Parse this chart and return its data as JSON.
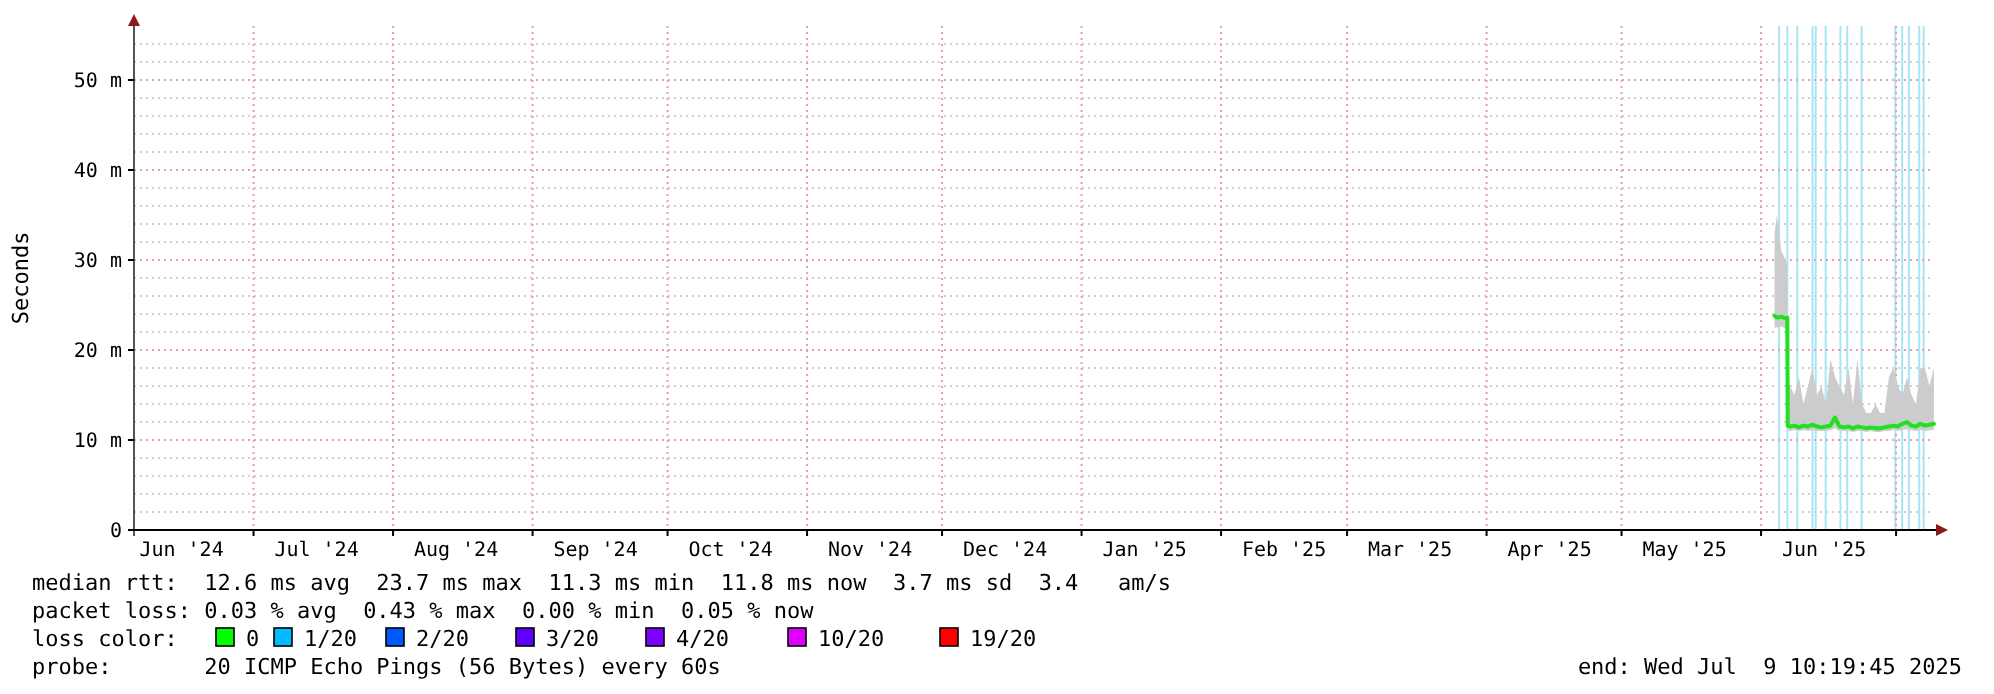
{
  "chart_data": {
    "type": "line",
    "ylabel": "Seconds",
    "xlim": [
      "2024-06-04T10:19",
      "2025-07-09T10:19"
    ],
    "xticks": [
      {
        "value": "2024-06-15",
        "label": "Jun '24"
      },
      {
        "value": "2024-07-01",
        "label": null
      },
      {
        "value": "2024-07-15",
        "label": "Jul '24"
      },
      {
        "value": "2024-08-01",
        "label": null
      },
      {
        "value": "2024-08-15",
        "label": "Aug '24"
      },
      {
        "value": "2024-09-01",
        "label": null
      },
      {
        "value": "2024-09-15",
        "label": "Sep '24"
      },
      {
        "value": "2024-10-01",
        "label": null
      },
      {
        "value": "2024-10-15",
        "label": "Oct '24"
      },
      {
        "value": "2024-11-01",
        "label": null
      },
      {
        "value": "2024-11-15",
        "label": "Nov '24"
      },
      {
        "value": "2024-12-01",
        "label": null
      },
      {
        "value": "2024-12-15",
        "label": "Dec '24"
      },
      {
        "value": "2025-01-01",
        "label": null
      },
      {
        "value": "2025-01-15",
        "label": "Jan '25"
      },
      {
        "value": "2025-02-01",
        "label": null
      },
      {
        "value": "2025-02-15",
        "label": "Feb '25"
      },
      {
        "value": "2025-03-01",
        "label": null
      },
      {
        "value": "2025-03-15",
        "label": "Mar '25"
      },
      {
        "value": "2025-04-01",
        "label": null
      },
      {
        "value": "2025-04-15",
        "label": "Apr '25"
      },
      {
        "value": "2025-05-01",
        "label": null
      },
      {
        "value": "2025-05-15",
        "label": "May '25"
      },
      {
        "value": "2025-06-01",
        "label": null
      },
      {
        "value": "2025-06-15",
        "label": "Jun '25"
      },
      {
        "value": "2025-07-01",
        "label": null
      }
    ],
    "ylim": [
      0,
      56
    ],
    "yticks": [
      {
        "value": 0,
        "label": "0"
      },
      {
        "value": 2,
        "label": null
      },
      {
        "value": 4,
        "label": null
      },
      {
        "value": 6,
        "label": null
      },
      {
        "value": 8,
        "label": null
      },
      {
        "value": 10,
        "label": "10 m"
      },
      {
        "value": 12,
        "label": null
      },
      {
        "value": 14,
        "label": null
      },
      {
        "value": 16,
        "label": null
      },
      {
        "value": 18,
        "label": null
      },
      {
        "value": 20,
        "label": "20 m"
      },
      {
        "value": 22,
        "label": null
      },
      {
        "value": 24,
        "label": null
      },
      {
        "value": 26,
        "label": null
      },
      {
        "value": 28,
        "label": null
      },
      {
        "value": 30,
        "label": "30 m"
      },
      {
        "value": 32,
        "label": null
      },
      {
        "value": 34,
        "label": null
      },
      {
        "value": 36,
        "label": null
      },
      {
        "value": 38,
        "label": null
      },
      {
        "value": 40,
        "label": "40 m"
      },
      {
        "value": 42,
        "label": null
      },
      {
        "value": 44,
        "label": null
      },
      {
        "value": 46,
        "label": null
      },
      {
        "value": 48,
        "label": null
      },
      {
        "value": 50,
        "label": "50 m"
      },
      {
        "value": 52,
        "label": null
      },
      {
        "value": 54,
        "label": null
      }
    ],
    "grid": true,
    "series": [
      {
        "color": "#20e020",
        "x": [
          "2025-06-04T00:00",
          "2025-06-04T12:00",
          "2025-06-05T12:00",
          "2025-06-06T12:00",
          "2025-06-06T20:00",
          "2025-06-06T22:00",
          "2025-06-07T10:00",
          "2025-06-08T10:00",
          "2025-06-09T10:00",
          "2025-06-10T10:00",
          "2025-06-11T10:00",
          "2025-06-12T10:00",
          "2025-06-13T10:00",
          "2025-06-14T10:00",
          "2025-06-15T10:00",
          "2025-06-16T10:00",
          "2025-06-17T10:00",
          "2025-06-18T10:00",
          "2025-06-19T10:00",
          "2025-06-20T10:00",
          "2025-06-21T10:00",
          "2025-06-22T10:00",
          "2025-06-23T10:00",
          "2025-06-24T10:00",
          "2025-06-25T10:00",
          "2025-06-26T10:00",
          "2025-06-27T10:00",
          "2025-06-28T10:00",
          "2025-06-29T10:00",
          "2025-06-30T10:00",
          "2025-07-01T10:00",
          "2025-07-02T10:00",
          "2025-07-03T10:00",
          "2025-07-04T10:00",
          "2025-07-05T10:00",
          "2025-07-06T10:00",
          "2025-07-07T10:00",
          "2025-07-08T10:00",
          "2025-07-09T10:00"
        ],
        "values": [
          23.8,
          23.6,
          23.7,
          23.5,
          23.6,
          11.6,
          11.5,
          11.6,
          11.4,
          11.6,
          11.5,
          11.7,
          11.5,
          11.4,
          11.5,
          11.6,
          12.5,
          11.5,
          11.4,
          11.5,
          11.3,
          11.5,
          11.4,
          11.3,
          11.4,
          11.3,
          11.3,
          11.4,
          11.5,
          11.6,
          11.5,
          11.8,
          12.0,
          11.6,
          11.5,
          11.8,
          11.6,
          11.7,
          11.8
        ],
        "lower": [
          22.5,
          22.5,
          22.6,
          22.4,
          22.5,
          11.1,
          11.0,
          11.1,
          11.0,
          11.1,
          11.0,
          11.1,
          11.0,
          11.0,
          11.0,
          11.1,
          11.3,
          11.0,
          11.0,
          11.0,
          10.9,
          11.0,
          11.0,
          10.9,
          11.0,
          10.9,
          10.9,
          11.0,
          11.0,
          11.1,
          11.0,
          11.1,
          11.2,
          11.1,
          11.0,
          11.1,
          11.0,
          11.1,
          11.1
        ],
        "upper": [
          33,
          35,
          31,
          30,
          29,
          17,
          16,
          15,
          17,
          14,
          16,
          18,
          15,
          16,
          14,
          19,
          17,
          16,
          15,
          18,
          14,
          19,
          14,
          13,
          13,
          14,
          13,
          13,
          17,
          18,
          16,
          15,
          17,
          15,
          14,
          18,
          18,
          16,
          18
        ]
      }
    ],
    "bands": [
      {
        "axis": "x",
        "from": "2025-06-04T19:00",
        "to": "2025-06-05T05:00",
        "color": "#a8e4f8"
      },
      {
        "axis": "x",
        "from": "2025-06-06T15:00",
        "to": "2025-06-07T01:00",
        "color": "#a8e4f8"
      },
      {
        "axis": "x",
        "from": "2025-06-08T20:00",
        "to": "2025-06-09T06:00",
        "color": "#a8e4f8"
      },
      {
        "axis": "x",
        "from": "2025-06-12T05:00",
        "to": "2025-06-12T15:00",
        "color": "#a8e4f8"
      },
      {
        "axis": "x",
        "from": "2025-06-12T22:00",
        "to": "2025-06-13T08:00",
        "color": "#a8e4f8"
      },
      {
        "axis": "x",
        "from": "2025-06-15T03:00",
        "to": "2025-06-15T13:00",
        "color": "#a8e4f8"
      },
      {
        "axis": "x",
        "from": "2025-06-18T10:00",
        "to": "2025-06-18T20:00",
        "color": "#a8e4f8"
      },
      {
        "axis": "x",
        "from": "2025-06-19T22:00",
        "to": "2025-06-20T08:00",
        "color": "#a8e4f8"
      },
      {
        "axis": "x",
        "from": "2025-06-23T03:00",
        "to": "2025-06-23T13:00",
        "color": "#a8e4f8"
      },
      {
        "axis": "x",
        "from": "2025-06-30T15:00",
        "to": "2025-07-01T01:00",
        "color": "#a8e4f8"
      },
      {
        "axis": "x",
        "from": "2025-07-02T03:00",
        "to": "2025-07-02T13:00",
        "color": "#a8e4f8"
      },
      {
        "axis": "x",
        "from": "2025-07-03T15:00",
        "to": "2025-07-04T01:00",
        "color": "#a8e4f8"
      },
      {
        "axis": "x",
        "from": "2025-07-05T22:00",
        "to": "2025-07-06T08:00",
        "color": "#a8e4f8"
      },
      {
        "axis": "x",
        "from": "2025-07-06T22:00",
        "to": "2025-07-07T08:00",
        "color": "#a8e4f8"
      }
    ],
    "annotations": [
      "median rtt:  12.6 ms avg  23.7 ms max  11.3 ms min  11.8 ms now  3.7 ms sd  3.4   am/s",
      "packet loss: 0.03 % avg  0.43 % max  0.00 % min  0.05 % now",
      "loss color:",
      "0",
      "1/20",
      "2/20",
      "3/20",
      "4/20",
      "10/20",
      "19/20",
      "probe:       20 ICMP Echo Pings (56 Bytes) every 60s",
      "end: Wed Jul  9 10:19:45 2025"
    ]
  }
}
